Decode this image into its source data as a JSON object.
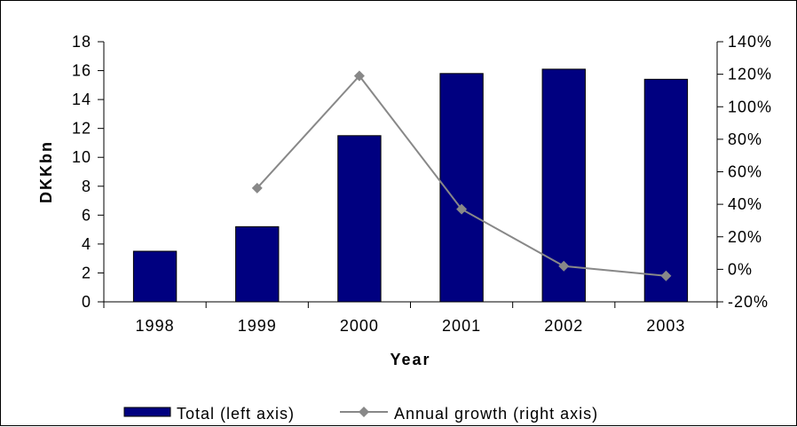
{
  "chart_data": {
    "type": "bar",
    "categories": [
      "1998",
      "1999",
      "2000",
      "2001",
      "2002",
      "2003"
    ],
    "series": [
      {
        "name": "Total (left axis)",
        "type": "bar",
        "axis": "left",
        "values": [
          3.5,
          5.2,
          11.5,
          15.8,
          16.1,
          15.4
        ],
        "color": "#000080"
      },
      {
        "name": "Annual growth (right axis)",
        "type": "line",
        "axis": "right",
        "values": [
          null,
          0.5,
          1.19,
          0.37,
          0.02,
          -0.04
        ],
        "color": "#888888"
      }
    ],
    "xlabel": "Year",
    "ylabel": "DKKbn",
    "ylim": [
      0,
      18
    ],
    "y2lim": [
      -0.2,
      1.4
    ],
    "yticks": [
      "0",
      "2",
      "4",
      "6",
      "8",
      "10",
      "12",
      "14",
      "16",
      "18"
    ],
    "y2ticks": [
      "-20%",
      "0%",
      "20%",
      "40%",
      "60%",
      "80%",
      "100%",
      "120%",
      "140%"
    ],
    "legend_position": "bottom",
    "grid": false
  }
}
